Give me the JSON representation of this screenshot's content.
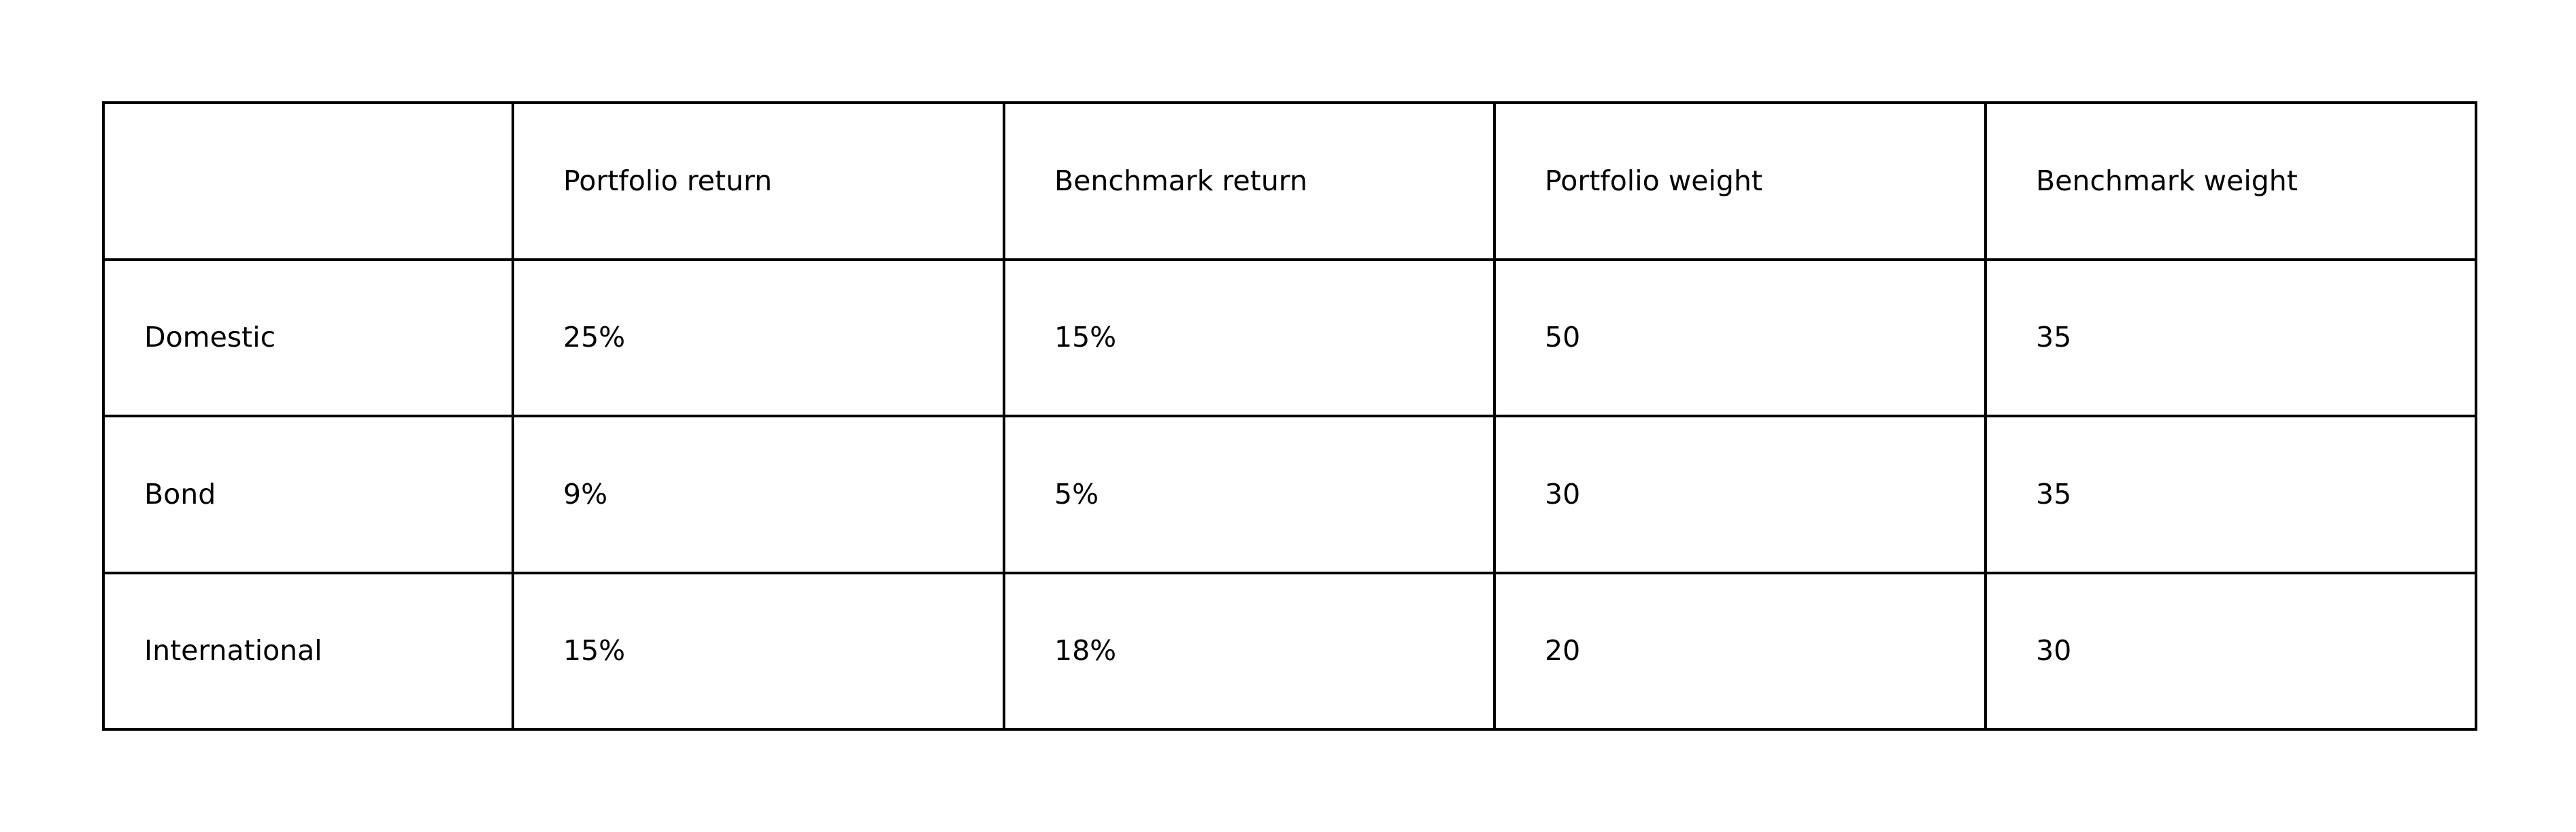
{
  "table": {
    "header": [
      "",
      "Portfolio return",
      "Benchmark return",
      "Portfolio weight",
      "Benchmark weight"
    ],
    "rows": [
      {
        "label": "Domestic",
        "cells": [
          "25%",
          "15%",
          "50",
          "35"
        ]
      },
      {
        "label": "Bond",
        "cells": [
          "9%",
          "5%",
          "30",
          "35"
        ]
      },
      {
        "label": "International",
        "cells": [
          "15%",
          "18%",
          "20",
          "30"
        ]
      }
    ]
  }
}
